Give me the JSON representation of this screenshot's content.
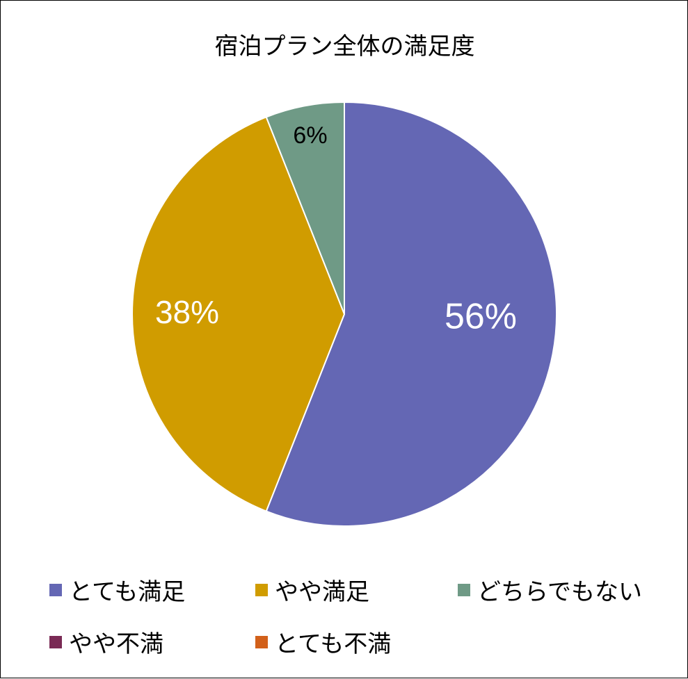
{
  "chart_data": {
    "type": "pie",
    "title": "宿泊プラン全体の満足度",
    "categories": [
      "とても満足",
      "やや満足",
      "どちらでもない",
      "やや不満",
      "とても不満"
    ],
    "values": [
      56,
      38,
      6,
      0,
      0
    ],
    "labels": [
      "56%",
      "38%",
      "6%",
      "",
      ""
    ],
    "colors": [
      "#6467b4",
      "#d09c00",
      "#6f9a86",
      "#7a2a55",
      "#d2601a"
    ],
    "label_colors": [
      "#ffffff",
      "#ffffff",
      "#000000",
      "#000000",
      "#000000"
    ],
    "start_angle": "12 o'clock",
    "direction": "clockwise",
    "legend": "bottom"
  }
}
